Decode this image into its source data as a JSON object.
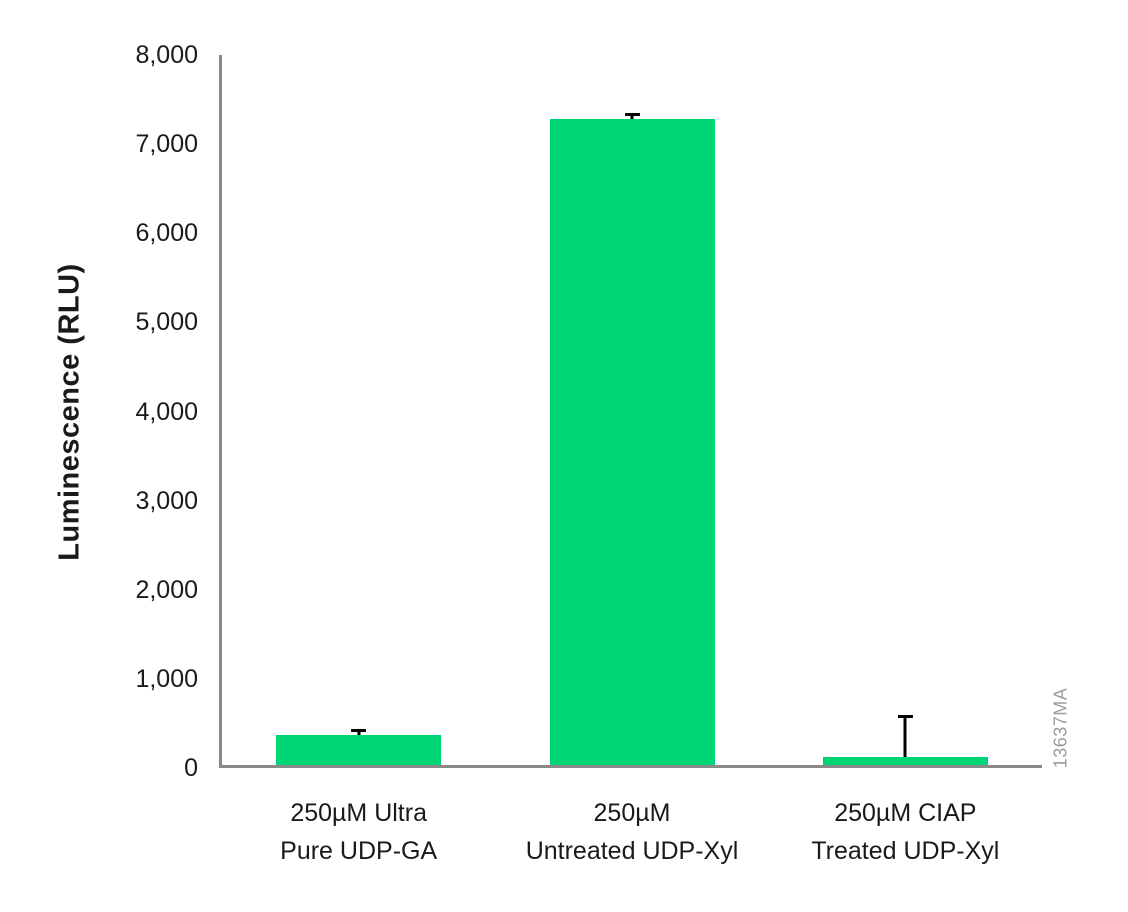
{
  "chart_data": {
    "type": "bar",
    "title": "",
    "xlabel": "",
    "ylabel": "Luminescence (RLU)",
    "categories": [
      "250µM Ultra\nPure UDP-GA",
      "250µM\nUntreated UDP-Xyl",
      "250µM CIAP\nTreated UDP-Xyl"
    ],
    "values": [
      370,
      7280,
      120
    ],
    "errors_plus": [
      65,
      65,
      480
    ],
    "ylim": [
      0,
      8000
    ],
    "ytick_interval": 1000,
    "ytick_labels": [
      "0",
      "1,000",
      "2,000",
      "3,000",
      "4,000",
      "5,000",
      "6,000",
      "7,000",
      "8,000"
    ],
    "grid": "off",
    "legend": "none",
    "bar_color": "#00d575",
    "axis_color": "#8a8a8a",
    "error_bar_color": "#000000"
  },
  "watermark": "13637MA"
}
